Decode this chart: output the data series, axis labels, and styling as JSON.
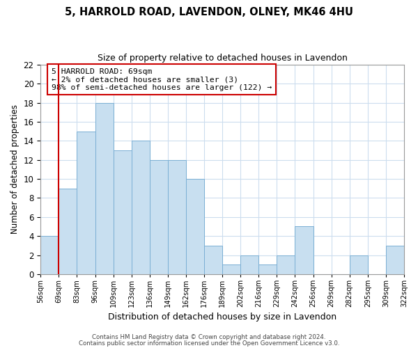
{
  "title": "5, HARROLD ROAD, LAVENDON, OLNEY, MK46 4HU",
  "subtitle": "Size of property relative to detached houses in Lavendon",
  "xlabel": "Distribution of detached houses by size in Lavendon",
  "ylabel": "Number of detached properties",
  "bar_color": "#c8dff0",
  "bar_edge_color": "#7aafd4",
  "highlight_line_color": "#cc0000",
  "bins": [
    "56sqm",
    "69sqm",
    "83sqm",
    "96sqm",
    "109sqm",
    "123sqm",
    "136sqm",
    "149sqm",
    "162sqm",
    "176sqm",
    "189sqm",
    "202sqm",
    "216sqm",
    "229sqm",
    "242sqm",
    "256sqm",
    "269sqm",
    "282sqm",
    "295sqm",
    "309sqm",
    "322sqm"
  ],
  "counts": [
    4,
    9,
    15,
    18,
    13,
    14,
    12,
    12,
    10,
    3,
    1,
    2,
    1,
    2,
    5,
    0,
    0,
    2,
    0,
    3
  ],
  "highlight_bin_index": 1,
  "highlight_label": "5 HARROLD ROAD: 69sqm",
  "annotation_line1": "← 2% of detached houses are smaller (3)",
  "annotation_line2": "98% of semi-detached houses are larger (122) →",
  "ylim": [
    0,
    22
  ],
  "yticks": [
    0,
    2,
    4,
    6,
    8,
    10,
    12,
    14,
    16,
    18,
    20,
    22
  ],
  "footer1": "Contains HM Land Registry data © Crown copyright and database right 2024.",
  "footer2": "Contains public sector information licensed under the Open Government Licence v3.0.",
  "bg_color": "#ffffff",
  "grid_color": "#ccddee"
}
